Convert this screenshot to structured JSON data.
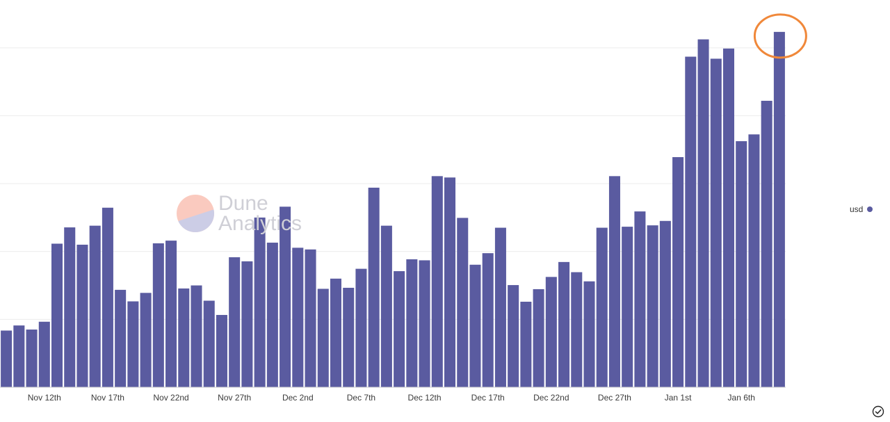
{
  "chart_data": {
    "type": "bar",
    "series": [
      {
        "name": "usd",
        "color": "#5a5ba0",
        "values": [
          1.67,
          1.82,
          1.7,
          1.93,
          4.23,
          4.71,
          4.2,
          4.76,
          5.29,
          2.87,
          2.53,
          2.78,
          4.24,
          4.32,
          2.91,
          3.0,
          2.55,
          2.13,
          3.83,
          3.71,
          5.0,
          4.26,
          5.32,
          4.11,
          4.06,
          2.9,
          3.2,
          2.93,
          3.49,
          5.88,
          4.76,
          3.42,
          3.77,
          3.74,
          6.22,
          6.18,
          4.99,
          3.61,
          3.95,
          4.7,
          3.01,
          2.52,
          2.89,
          3.25,
          3.69,
          3.39,
          3.12,
          4.7,
          6.22,
          4.73,
          5.18,
          4.77,
          4.9,
          6.78,
          9.74,
          10.25,
          9.68,
          9.98,
          7.25,
          7.45,
          8.44,
          10.47
        ]
      }
    ],
    "x_tick_labels": [
      "Nov 12th",
      "Nov 17th",
      "Nov 22nd",
      "Nov 27th",
      "Dec 2nd",
      "Dec 7th",
      "Dec 12th",
      "Dec 17th",
      "Dec 22nd",
      "Dec 27th",
      "Jan 1st",
      "Jan 6th"
    ],
    "x_tick_positions": [
      3,
      8,
      13,
      18,
      23,
      28,
      33,
      38,
      43,
      48,
      53,
      58
    ],
    "ylim": [
      0,
      11
    ],
    "grid": true,
    "legend": {
      "position": "right",
      "entries": [
        {
          "label": "usd",
          "color": "#5a5ba0"
        }
      ]
    },
    "annotation": {
      "type": "circle",
      "target_index": 61,
      "color": "#f0883a"
    }
  },
  "watermark": {
    "line1": "Dune",
    "line2": "Analytics"
  },
  "icons": {
    "status": "check-circle-icon"
  }
}
